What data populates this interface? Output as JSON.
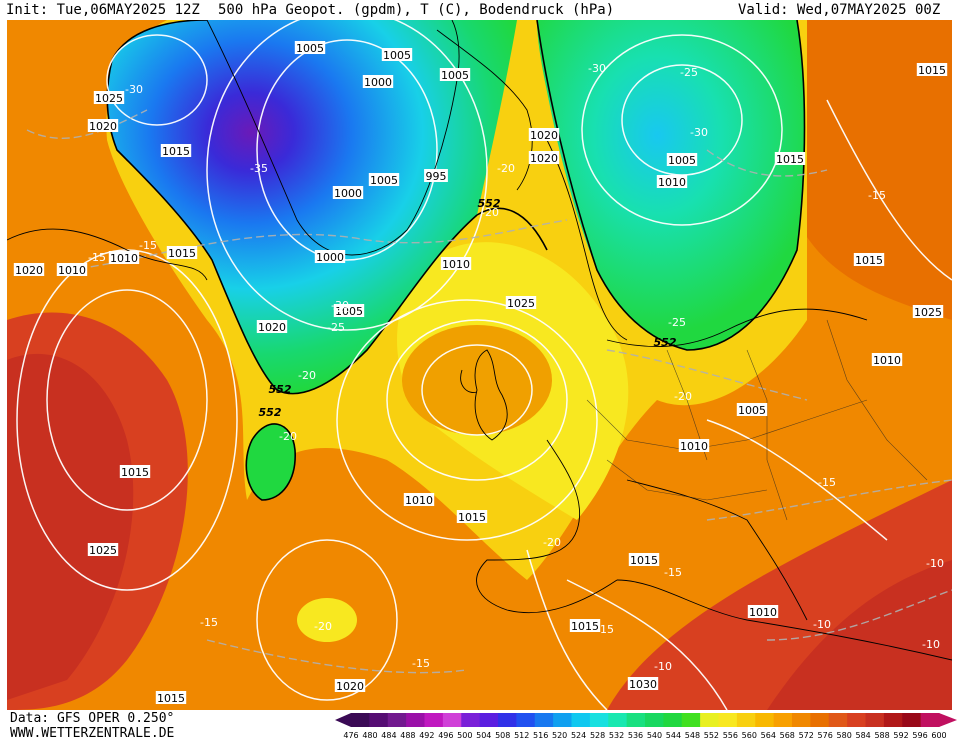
{
  "header": {
    "init": "Init: Tue,06MAY2025 12Z",
    "title": "500 hPa Geopot. (gpdm), T (C), Bodendruck (hPa)",
    "valid": "Valid: Wed,07MAY2025 00Z"
  },
  "footer": {
    "data_source": "Data: GFS OPER 0.250°",
    "website": "WWW.WETTERZENTRALE.DE"
  },
  "map": {
    "isobar_labels": [
      {
        "text": "1005"
      },
      {
        "text": "1005"
      },
      {
        "text": "1000"
      },
      {
        "text": "1005"
      },
      {
        "text": "1000"
      },
      {
        "text": "1025"
      },
      {
        "text": "1020"
      },
      {
        "text": "1015"
      },
      {
        "text": "1020"
      },
      {
        "text": "1020"
      },
      {
        "text": "1005"
      },
      {
        "text": "1010"
      },
      {
        "text": "1015"
      },
      {
        "text": "1015"
      },
      {
        "text": "1000"
      },
      {
        "text": "1005"
      },
      {
        "text": "1005"
      },
      {
        "text": "995"
      },
      {
        "text": "1010"
      },
      {
        "text": "1025"
      },
      {
        "text": "1020"
      },
      {
        "text": "1015"
      },
      {
        "text": "1025"
      },
      {
        "text": "1010"
      },
      {
        "text": "1005"
      },
      {
        "text": "1010"
      },
      {
        "text": "1015"
      },
      {
        "text": "1015"
      },
      {
        "text": "1010"
      },
      {
        "text": "1015"
      },
      {
        "text": "1030"
      },
      {
        "text": "1020"
      },
      {
        "text": "1015"
      },
      {
        "text": "1025"
      },
      {
        "text": "1015"
      },
      {
        "text": "1010"
      },
      {
        "text": "1010"
      },
      {
        "text": "1010"
      },
      {
        "text": "1015"
      },
      {
        "text": "1020"
      }
    ],
    "temp_labels": [
      {
        "text": "-30"
      },
      {
        "text": "-35"
      },
      {
        "text": "-25"
      },
      {
        "text": "-30"
      },
      {
        "text": "-25"
      },
      {
        "text": "-30"
      },
      {
        "text": "-20"
      },
      {
        "text": "-15"
      },
      {
        "text": "-15"
      },
      {
        "text": "-30"
      },
      {
        "text": "-25"
      },
      {
        "text": "-20"
      },
      {
        "text": "-20"
      },
      {
        "text": "-25"
      },
      {
        "text": "-20"
      },
      {
        "text": "-15"
      },
      {
        "text": "-20"
      },
      {
        "text": "-15"
      },
      {
        "text": "-15"
      },
      {
        "text": "-10"
      },
      {
        "text": "-10"
      },
      {
        "text": "-10"
      },
      {
        "text": "-20"
      },
      {
        "text": "-15"
      },
      {
        "text": "-15"
      },
      {
        "text": "-10"
      },
      {
        "text": "-20"
      },
      {
        "text": "-15"
      }
    ],
    "geopot_labels": [
      {
        "text": "552"
      },
      {
        "text": "552"
      },
      {
        "text": "552"
      },
      {
        "text": "552"
      }
    ]
  },
  "legend": {
    "values": [
      "476",
      "480",
      "484",
      "488",
      "492",
      "496",
      "500",
      "504",
      "508",
      "512",
      "516",
      "520",
      "524",
      "528",
      "532",
      "536",
      "540",
      "544",
      "548",
      "552",
      "556",
      "560",
      "564",
      "568",
      "572",
      "576",
      "580",
      "584",
      "588",
      "592",
      "596",
      "600"
    ],
    "colors": [
      "#3a0a55",
      "#550d73",
      "#721a8f",
      "#9a10a8",
      "#c018c0",
      "#d040d8",
      "#7a20d8",
      "#5a1ee0",
      "#3030e8",
      "#2050f0",
      "#1878f0",
      "#10a0f0",
      "#10c8f0",
      "#18e0e0",
      "#18e8b0",
      "#18e080",
      "#18d860",
      "#20d840",
      "#40e020",
      "#e8f020",
      "#f8e820",
      "#f8d010",
      "#f8b800",
      "#f8a000",
      "#f08800",
      "#e87000",
      "#e05818",
      "#d84020",
      "#c83020",
      "#b01818",
      "#980818",
      "#c01060"
    ]
  }
}
